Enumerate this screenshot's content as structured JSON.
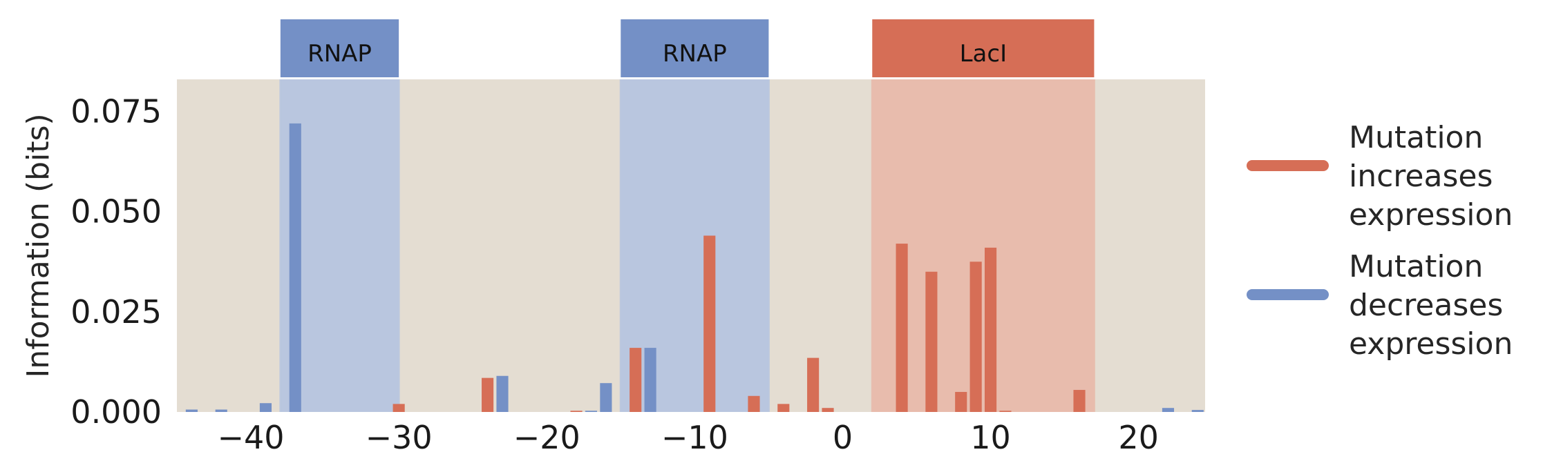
{
  "chart_data": {
    "type": "bar",
    "title": "",
    "xlabel": "",
    "ylabel": "Information (bits)",
    "xlim": [
      -45,
      24.5
    ],
    "ylim": [
      0,
      0.083
    ],
    "x_ticks": [
      -40,
      -30,
      -20,
      -10,
      0,
      10,
      20
    ],
    "x_tick_labels": [
      "−40",
      "−30",
      "−20",
      "−10",
      "0",
      "10",
      "20"
    ],
    "y_ticks": [
      0,
      0.025,
      0.05,
      0.075
    ],
    "y_tick_labels": [
      "0.000",
      "0.025",
      "0.050",
      "0.075"
    ],
    "grid": false,
    "background_color": "#e4ddd2",
    "colors": {
      "increases": "#d66e56",
      "decreases": "#7490c6",
      "rnap_band": "#b9c6df",
      "laci_band": "#e8bcad"
    },
    "regions": [
      {
        "label": "RNAP",
        "start": -38,
        "end": -30,
        "color": "#7490c6"
      },
      {
        "label": "RNAP",
        "start": -15,
        "end": -5,
        "color": "#7490c6"
      },
      {
        "label": "LacI",
        "start": 2,
        "end": 17,
        "color": "#d66e56"
      }
    ],
    "series": [
      {
        "name": "Mutation increases expression",
        "color": "#d66e56",
        "points": [
          {
            "x": -30,
            "y": 0.002
          },
          {
            "x": -24,
            "y": 0.0085
          },
          {
            "x": -18,
            "y": 0.0003
          },
          {
            "x": -14,
            "y": 0.016
          },
          {
            "x": -9,
            "y": 0.044
          },
          {
            "x": -6,
            "y": 0.004
          },
          {
            "x": -4,
            "y": 0.002
          },
          {
            "x": -2,
            "y": 0.0135
          },
          {
            "x": -1,
            "y": 0.001
          },
          {
            "x": 4,
            "y": 0.042
          },
          {
            "x": 6,
            "y": 0.035
          },
          {
            "x": 8,
            "y": 0.005
          },
          {
            "x": 9,
            "y": 0.0375
          },
          {
            "x": 10,
            "y": 0.041
          },
          {
            "x": 11,
            "y": 0.0003
          },
          {
            "x": 16,
            "y": 0.0055
          }
        ]
      },
      {
        "name": "Mutation decreases expression",
        "color": "#7490c6",
        "points": [
          {
            "x": -44,
            "y": 0.0006
          },
          {
            "x": -42,
            "y": 0.0006
          },
          {
            "x": -39,
            "y": 0.0022
          },
          {
            "x": -37,
            "y": 0.072
          },
          {
            "x": -23,
            "y": 0.009
          },
          {
            "x": -17,
            "y": 0.0003
          },
          {
            "x": -16,
            "y": 0.0072
          },
          {
            "x": -13,
            "y": 0.016
          },
          {
            "x": 22,
            "y": 0.001
          },
          {
            "x": 24,
            "y": 0.0005
          }
        ]
      }
    ],
    "legend": {
      "placement": "right",
      "entries": [
        {
          "lines": [
            "Mutation",
            "increases",
            "expression"
          ],
          "color": "#d66e56"
        },
        {
          "lines": [
            "Mutation",
            "decreases",
            "expression"
          ],
          "color": "#7490c6"
        }
      ]
    }
  }
}
